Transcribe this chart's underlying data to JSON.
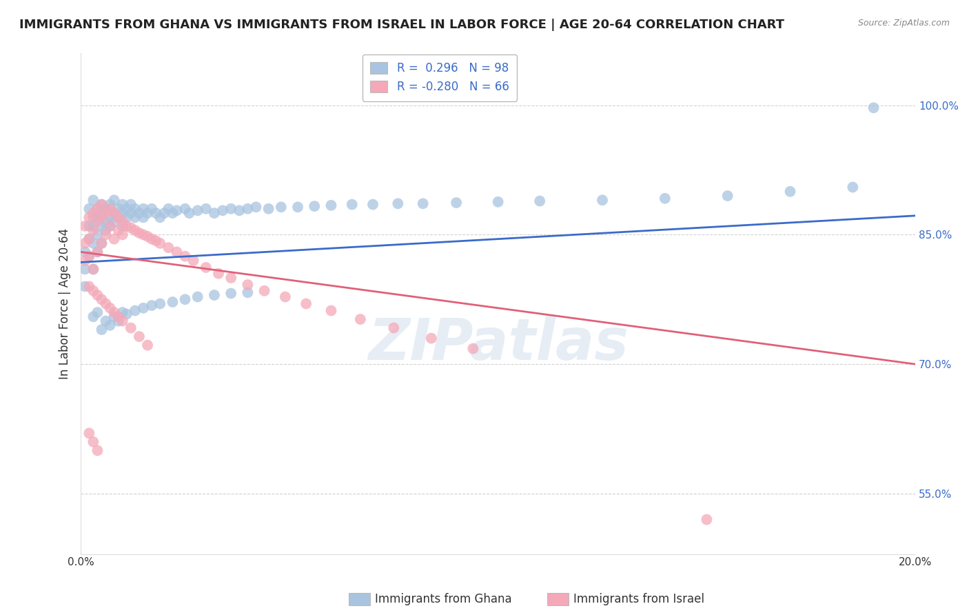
{
  "title": "IMMIGRANTS FROM GHANA VS IMMIGRANTS FROM ISRAEL IN LABOR FORCE | AGE 20-64 CORRELATION CHART",
  "source": "Source: ZipAtlas.com",
  "ylabel": "In Labor Force | Age 20-64",
  "x_min": 0.0,
  "x_max": 0.2,
  "y_min": 0.48,
  "y_max": 1.06,
  "y_ticks": [
    0.55,
    0.7,
    0.85,
    1.0
  ],
  "y_tick_labels": [
    "55.0%",
    "70.0%",
    "85.0%",
    "100.0%"
  ],
  "x_ticks": [
    0.0,
    0.05,
    0.1,
    0.15,
    0.2
  ],
  "x_tick_labels": [
    "0.0%",
    "",
    "",
    "",
    "20.0%"
  ],
  "ghana_color": "#a8c4e0",
  "israel_color": "#f4a8b8",
  "ghana_line_color": "#3a6bc9",
  "israel_line_color": "#e0607a",
  "ghana_R": 0.296,
  "ghana_N": 98,
  "israel_R": -0.28,
  "israel_N": 66,
  "legend_label_ghana": "Immigrants from Ghana",
  "legend_label_israel": "Immigrants from Israel",
  "watermark": "ZIPatlas",
  "ghana_scatter_x": [
    0.001,
    0.001,
    0.001,
    0.002,
    0.002,
    0.002,
    0.002,
    0.003,
    0.003,
    0.003,
    0.003,
    0.003,
    0.004,
    0.004,
    0.004,
    0.004,
    0.005,
    0.005,
    0.005,
    0.005,
    0.006,
    0.006,
    0.006,
    0.007,
    0.007,
    0.007,
    0.008,
    0.008,
    0.008,
    0.009,
    0.009,
    0.01,
    0.01,
    0.01,
    0.011,
    0.011,
    0.012,
    0.012,
    0.013,
    0.013,
    0.014,
    0.015,
    0.015,
    0.016,
    0.017,
    0.018,
    0.019,
    0.02,
    0.021,
    0.022,
    0.023,
    0.025,
    0.026,
    0.028,
    0.03,
    0.032,
    0.034,
    0.036,
    0.038,
    0.04,
    0.042,
    0.045,
    0.048,
    0.052,
    0.056,
    0.06,
    0.065,
    0.07,
    0.076,
    0.082,
    0.09,
    0.1,
    0.11,
    0.125,
    0.14,
    0.155,
    0.17,
    0.185,
    0.003,
    0.004,
    0.005,
    0.006,
    0.007,
    0.008,
    0.009,
    0.01,
    0.011,
    0.013,
    0.015,
    0.017,
    0.019,
    0.022,
    0.025,
    0.028,
    0.032,
    0.036,
    0.19,
    0.04
  ],
  "ghana_scatter_y": [
    0.83,
    0.81,
    0.79,
    0.845,
    0.825,
    0.86,
    0.88,
    0.84,
    0.86,
    0.87,
    0.89,
    0.81,
    0.85,
    0.87,
    0.88,
    0.83,
    0.86,
    0.875,
    0.885,
    0.84,
    0.865,
    0.88,
    0.855,
    0.87,
    0.885,
    0.86,
    0.875,
    0.89,
    0.865,
    0.88,
    0.87,
    0.875,
    0.885,
    0.86,
    0.88,
    0.87,
    0.875,
    0.885,
    0.88,
    0.87,
    0.875,
    0.88,
    0.87,
    0.875,
    0.88,
    0.875,
    0.87,
    0.875,
    0.88,
    0.875,
    0.878,
    0.88,
    0.875,
    0.878,
    0.88,
    0.875,
    0.878,
    0.88,
    0.878,
    0.88,
    0.882,
    0.88,
    0.882,
    0.882,
    0.883,
    0.884,
    0.885,
    0.885,
    0.886,
    0.886,
    0.887,
    0.888,
    0.889,
    0.89,
    0.892,
    0.895,
    0.9,
    0.905,
    0.755,
    0.76,
    0.74,
    0.75,
    0.745,
    0.755,
    0.75,
    0.76,
    0.758,
    0.762,
    0.765,
    0.768,
    0.77,
    0.772,
    0.775,
    0.778,
    0.78,
    0.782,
    0.997,
    0.783
  ],
  "israel_scatter_x": [
    0.001,
    0.001,
    0.001,
    0.002,
    0.002,
    0.002,
    0.003,
    0.003,
    0.003,
    0.004,
    0.004,
    0.004,
    0.005,
    0.005,
    0.005,
    0.006,
    0.006,
    0.007,
    0.007,
    0.008,
    0.008,
    0.009,
    0.009,
    0.01,
    0.01,
    0.011,
    0.012,
    0.013,
    0.014,
    0.015,
    0.016,
    0.017,
    0.018,
    0.019,
    0.021,
    0.023,
    0.025,
    0.027,
    0.03,
    0.033,
    0.036,
    0.04,
    0.044,
    0.049,
    0.054,
    0.06,
    0.067,
    0.075,
    0.084,
    0.094,
    0.002,
    0.003,
    0.004,
    0.005,
    0.006,
    0.007,
    0.008,
    0.009,
    0.01,
    0.012,
    0.014,
    0.016,
    0.002,
    0.003,
    0.004,
    0.15
  ],
  "israel_scatter_y": [
    0.84,
    0.82,
    0.86,
    0.845,
    0.87,
    0.825,
    0.855,
    0.875,
    0.81,
    0.865,
    0.88,
    0.83,
    0.87,
    0.885,
    0.84,
    0.875,
    0.85,
    0.88,
    0.86,
    0.875,
    0.845,
    0.87,
    0.855,
    0.865,
    0.85,
    0.86,
    0.858,
    0.855,
    0.852,
    0.85,
    0.848,
    0.845,
    0.843,
    0.84,
    0.835,
    0.83,
    0.825,
    0.82,
    0.812,
    0.805,
    0.8,
    0.792,
    0.785,
    0.778,
    0.77,
    0.762,
    0.752,
    0.742,
    0.73,
    0.718,
    0.79,
    0.785,
    0.78,
    0.775,
    0.77,
    0.765,
    0.76,
    0.755,
    0.75,
    0.742,
    0.732,
    0.722,
    0.62,
    0.61,
    0.6,
    0.52
  ],
  "bg_color": "#ffffff",
  "grid_color": "#cccccc",
  "title_fontsize": 13,
  "axis_label_fontsize": 12,
  "tick_fontsize": 11,
  "legend_fontsize": 12
}
